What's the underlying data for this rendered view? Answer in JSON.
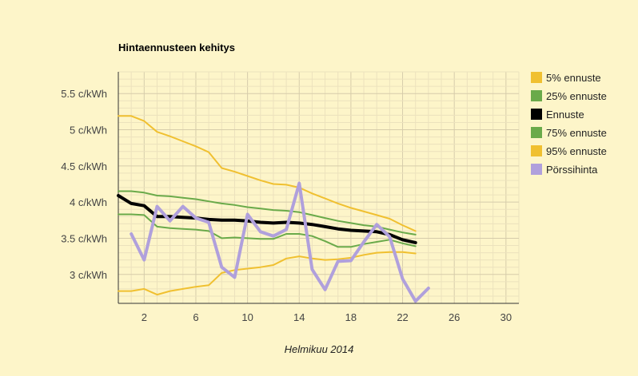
{
  "chart_data": {
    "type": "line",
    "title": "Hintaennusteen kehitys",
    "xlabel": "Helmikuu 2014",
    "ylabel": "",
    "xlim": [
      0,
      31
    ],
    "ylim": [
      2.6,
      5.8
    ],
    "x_ticks": [
      2,
      6,
      10,
      14,
      18,
      22,
      26,
      30
    ],
    "x_tick_labels": [
      "2",
      "6",
      "10",
      "14",
      "18",
      "22",
      "26",
      "30"
    ],
    "y_ticks": [
      3,
      3.5,
      4,
      4.5,
      5,
      5.5
    ],
    "y_tick_labels": [
      "3 c/kWh",
      "3.5 c/kWh",
      "4 c/kWh",
      "4.5 c/kWh",
      "5 c/kWh",
      "5.5 c/kWh"
    ],
    "grid": true,
    "legend_position": "right",
    "series": [
      {
        "name": "5% ennuste",
        "color": "#f0c030",
        "width": 2,
        "x": [
          0,
          1,
          2,
          3,
          4,
          5,
          6,
          7,
          8,
          9,
          10,
          11,
          12,
          13,
          14,
          15,
          16,
          17,
          18,
          19,
          20,
          21,
          22,
          23
        ],
        "values": [
          2.77,
          2.77,
          2.8,
          2.72,
          2.77,
          2.8,
          2.83,
          2.85,
          3.02,
          3.06,
          3.08,
          3.1,
          3.13,
          3.22,
          3.25,
          3.22,
          3.2,
          3.21,
          3.23,
          3.27,
          3.3,
          3.31,
          3.31,
          3.29
        ]
      },
      {
        "name": "25% ennuste",
        "color": "#6aaa4a",
        "width": 2,
        "x": [
          0,
          1,
          2,
          3,
          4,
          5,
          6,
          7,
          8,
          9,
          10,
          11,
          12,
          13,
          14,
          15,
          16,
          17,
          18,
          19,
          20,
          21,
          22,
          23
        ],
        "values": [
          3.83,
          3.83,
          3.82,
          3.66,
          3.64,
          3.63,
          3.62,
          3.6,
          3.5,
          3.51,
          3.5,
          3.49,
          3.49,
          3.56,
          3.56,
          3.53,
          3.46,
          3.38,
          3.38,
          3.42,
          3.45,
          3.48,
          3.43,
          3.39
        ]
      },
      {
        "name": "Ennuste",
        "color": "#000000",
        "width": 4,
        "x": [
          0,
          1,
          2,
          3,
          4,
          5,
          6,
          7,
          8,
          9,
          10,
          11,
          12,
          13,
          14,
          15,
          16,
          17,
          18,
          19,
          20,
          21,
          22,
          23
        ],
        "values": [
          4.09,
          3.98,
          3.95,
          3.8,
          3.8,
          3.79,
          3.78,
          3.76,
          3.75,
          3.75,
          3.74,
          3.72,
          3.71,
          3.72,
          3.71,
          3.69,
          3.66,
          3.63,
          3.61,
          3.6,
          3.59,
          3.55,
          3.48,
          3.44
        ]
      },
      {
        "name": "75% ennuste",
        "color": "#6aaa4a",
        "width": 2,
        "x": [
          0,
          1,
          2,
          3,
          4,
          5,
          6,
          7,
          8,
          9,
          10,
          11,
          12,
          13,
          14,
          15,
          16,
          17,
          18,
          19,
          20,
          21,
          22,
          23
        ],
        "values": [
          4.15,
          4.15,
          4.13,
          4.09,
          4.08,
          4.06,
          4.04,
          4.01,
          3.98,
          3.96,
          3.93,
          3.91,
          3.89,
          3.88,
          3.86,
          3.82,
          3.78,
          3.74,
          3.71,
          3.68,
          3.66,
          3.62,
          3.58,
          3.55
        ]
      },
      {
        "name": "95% ennuste",
        "color": "#f0c030",
        "width": 2,
        "x": [
          0,
          1,
          2,
          3,
          4,
          5,
          6,
          7,
          8,
          9,
          10,
          11,
          12,
          13,
          14,
          15,
          16,
          17,
          18,
          19,
          20,
          21,
          22,
          23
        ],
        "values": [
          5.19,
          5.19,
          5.12,
          4.97,
          4.91,
          4.84,
          4.77,
          4.69,
          4.47,
          4.42,
          4.36,
          4.3,
          4.25,
          4.24,
          4.2,
          4.12,
          4.05,
          3.98,
          3.92,
          3.87,
          3.82,
          3.77,
          3.68,
          3.6
        ]
      },
      {
        "name": "Pörssihinta",
        "color": "#b0a0dc",
        "width": 4,
        "x": [
          1,
          2,
          3,
          4,
          5,
          6,
          7,
          8,
          9,
          10,
          11,
          12,
          13,
          14,
          15,
          16,
          17,
          18,
          19,
          20,
          21,
          22,
          23,
          24
        ],
        "values": [
          3.56,
          3.2,
          3.94,
          3.74,
          3.94,
          3.78,
          3.72,
          3.1,
          2.96,
          3.83,
          3.59,
          3.53,
          3.62,
          4.26,
          3.07,
          2.79,
          3.18,
          3.19,
          3.45,
          3.69,
          3.52,
          2.94,
          2.63,
          2.81
        ]
      }
    ]
  }
}
